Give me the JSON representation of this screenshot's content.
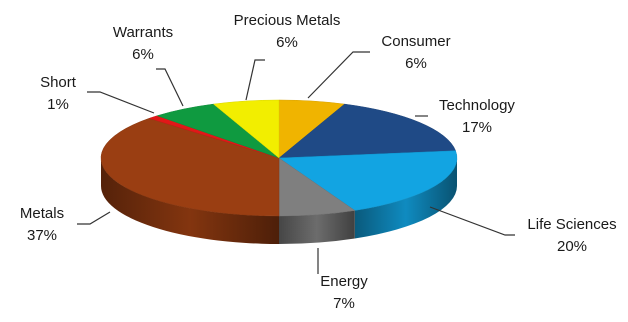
{
  "chart_data": {
    "type": "pie",
    "style": "3d-pie",
    "title": "",
    "legend": "none",
    "data_labels": "category-and-percent, outside with leader lines",
    "slices": [
      {
        "name": "Consumer",
        "value": 6,
        "value_label": "6%",
        "color": "#F0B400"
      },
      {
        "name": "Technology",
        "value": 17,
        "value_label": "17%",
        "color": "#1F4A86"
      },
      {
        "name": "Life Sciences",
        "value": 20,
        "value_label": "20%",
        "color": "#12A4E2"
      },
      {
        "name": "Energy",
        "value": 7,
        "value_label": "7%",
        "color": "#7F7F7F"
      },
      {
        "name": "Metals",
        "value": 37,
        "value_label": "37%",
        "color": "#9A3E12"
      },
      {
        "name": "Short",
        "value": 1,
        "value_label": "1%",
        "color": "#E01818"
      },
      {
        "name": "Warrants",
        "value": 6,
        "value_label": "6%",
        "color": "#0F9A40"
      },
      {
        "name": "Precious Metals",
        "value": 6,
        "value_label": "6%",
        "color": "#F2EE00"
      }
    ]
  }
}
